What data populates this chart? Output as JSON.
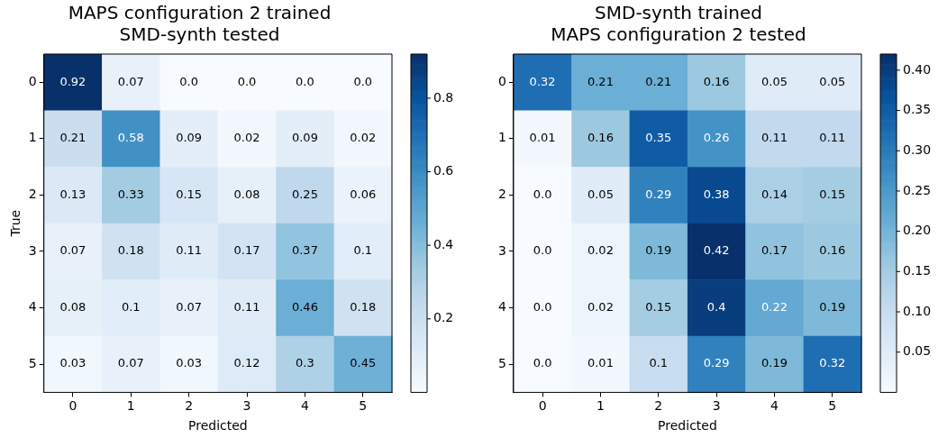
{
  "chart_data": [
    {
      "type": "heatmap",
      "title": "MAPS configuration 2 trained\nSMD-synth tested",
      "xlabel": "Predicted",
      "ylabel": "True",
      "categories": [
        "0",
        "1",
        "2",
        "3",
        "4",
        "5"
      ],
      "y_categories": [
        "0",
        "1",
        "2",
        "3",
        "4",
        "5"
      ],
      "cells": [
        [
          0.92,
          0.07,
          0.0,
          0.0,
          0.0,
          0.0
        ],
        [
          0.21,
          0.58,
          0.09,
          0.02,
          0.09,
          0.02
        ],
        [
          0.13,
          0.33,
          0.15,
          0.08,
          0.25,
          0.06
        ],
        [
          0.07,
          0.18,
          0.11,
          0.17,
          0.37,
          0.1
        ],
        [
          0.08,
          0.1,
          0.07,
          0.11,
          0.46,
          0.18
        ],
        [
          0.03,
          0.07,
          0.03,
          0.12,
          0.3,
          0.45
        ]
      ],
      "cell_labels": [
        [
          "0.92",
          "0.07",
          "0.0",
          "0.0",
          "0.0",
          "0.0"
        ],
        [
          "0.21",
          "0.58",
          "0.09",
          "0.02",
          "0.09",
          "0.02"
        ],
        [
          "0.13",
          "0.33",
          "0.15",
          "0.08",
          "0.25",
          "0.06"
        ],
        [
          "0.07",
          "0.18",
          "0.11",
          "0.17",
          "0.37",
          "0.1"
        ],
        [
          "0.08",
          "0.1",
          "0.07",
          "0.11",
          "0.46",
          "0.18"
        ],
        [
          "0.03",
          "0.07",
          "0.03",
          "0.12",
          "0.3",
          "0.45"
        ]
      ],
      "clim": [
        0.0,
        0.92
      ],
      "cticks": [
        0.2,
        0.4,
        0.6,
        0.8
      ],
      "data_labels": true
    },
    {
      "type": "heatmap",
      "title": "SMD-synth trained\nMAPS configuration 2 tested",
      "xlabel": "Predicted",
      "categories": [
        "0",
        "1",
        "2",
        "3",
        "4",
        "5"
      ],
      "y_categories": [
        "0",
        "1",
        "2",
        "3",
        "4",
        "5"
      ],
      "cells": [
        [
          0.32,
          0.21,
          0.21,
          0.16,
          0.05,
          0.05
        ],
        [
          0.01,
          0.16,
          0.35,
          0.26,
          0.11,
          0.11
        ],
        [
          0.0,
          0.05,
          0.29,
          0.38,
          0.14,
          0.15
        ],
        [
          0.0,
          0.02,
          0.19,
          0.42,
          0.17,
          0.16
        ],
        [
          0.0,
          0.02,
          0.15,
          0.4,
          0.22,
          0.19
        ],
        [
          0.0,
          0.01,
          0.1,
          0.29,
          0.19,
          0.32
        ]
      ],
      "cell_labels": [
        [
          "0.32",
          "0.21",
          "0.21",
          "0.16",
          "0.05",
          "0.05"
        ],
        [
          "0.01",
          "0.16",
          "0.35",
          "0.26",
          "0.11",
          "0.11"
        ],
        [
          "0.0",
          "0.05",
          "0.29",
          "0.38",
          "0.14",
          "0.15"
        ],
        [
          "0.0",
          "0.02",
          "0.19",
          "0.42",
          "0.17",
          "0.16"
        ],
        [
          "0.0",
          "0.02",
          "0.15",
          "0.4",
          "0.22",
          "0.19"
        ],
        [
          "0.0",
          "0.01",
          "0.1",
          "0.29",
          "0.19",
          "0.32"
        ]
      ],
      "clim": [
        0.0,
        0.42
      ],
      "cticks": [
        {
          "value": 0.05,
          "label": "0.05"
        },
        {
          "value": 0.1,
          "label": "0.10"
        },
        {
          "value": 0.15,
          "label": "0.15"
        },
        {
          "value": 0.2,
          "label": "0.20"
        },
        {
          "value": 0.25,
          "label": "0.25"
        },
        {
          "value": 0.3,
          "label": "0.30"
        },
        {
          "value": 0.35,
          "label": "0.35"
        },
        {
          "value": 0.4,
          "label": "0.40"
        }
      ],
      "data_labels": true
    }
  ]
}
